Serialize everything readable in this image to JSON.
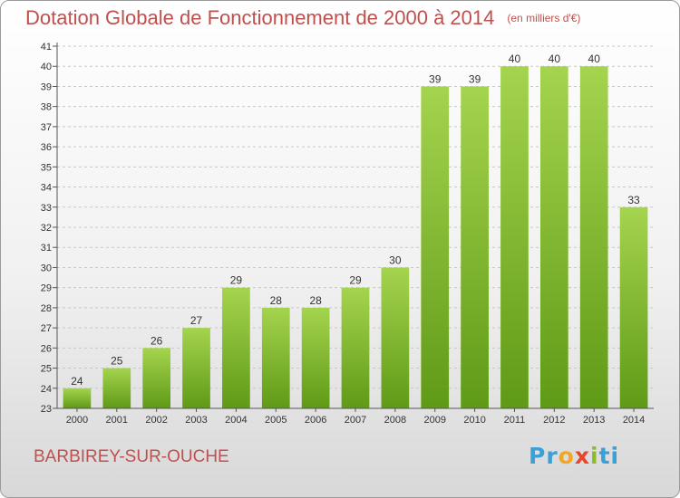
{
  "chart_data": {
    "type": "bar",
    "title": "Dotation Globale de Fonctionnement de 2000 à 2014",
    "subtitle": "(en milliers d'€)",
    "xlabel": "",
    "ylabel": "",
    "categories": [
      "2000",
      "2001",
      "2002",
      "2003",
      "2004",
      "2005",
      "2006",
      "2007",
      "2008",
      "2009",
      "2010",
      "2011",
      "2012",
      "2013",
      "2014"
    ],
    "values": [
      24,
      25,
      26,
      27,
      29,
      28,
      28,
      29,
      30,
      39,
      39,
      40,
      40,
      40,
      33
    ],
    "ylim": [
      23,
      41
    ],
    "yticks": [
      23,
      24,
      25,
      26,
      27,
      28,
      29,
      30,
      31,
      32,
      33,
      34,
      35,
      36,
      37,
      38,
      39,
      40,
      41
    ],
    "grid": true,
    "bar_color_top": "#a5d44e",
    "bar_color_bottom": "#5f9a16"
  },
  "footer": {
    "place": "BARBIREY-SUR-OUCHE",
    "logo": [
      "Pr",
      "o",
      "x",
      "i",
      "ti"
    ]
  }
}
